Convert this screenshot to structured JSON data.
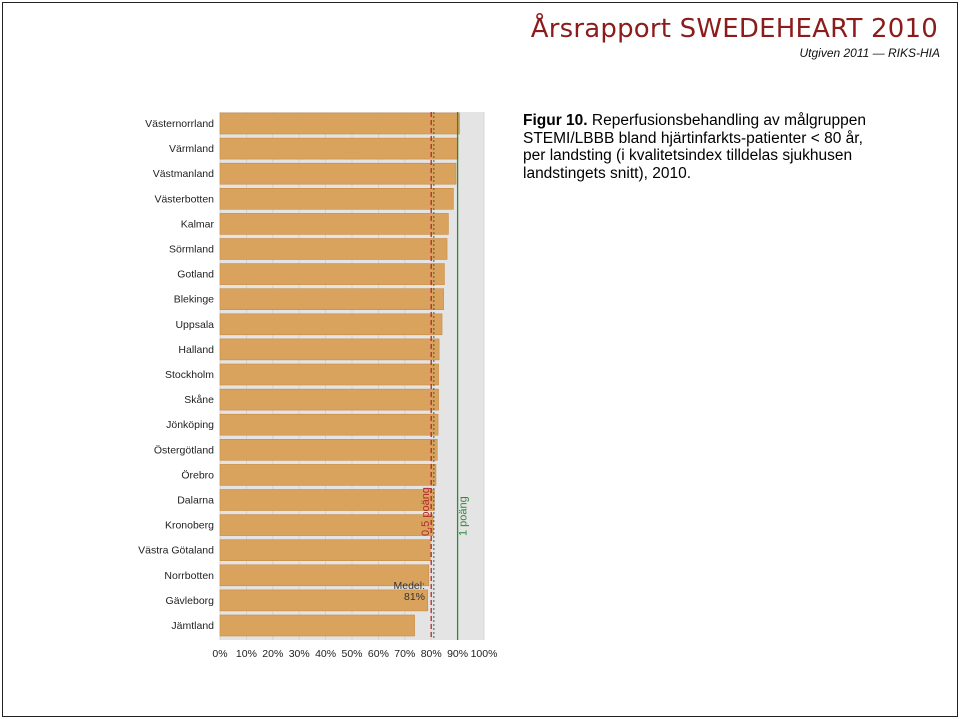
{
  "header": {
    "brand": "Årsrapport SWEDEHEART 2010",
    "subtitle": "Utgiven 2011 — RIKS-HIA"
  },
  "caption": {
    "label": "Figur 10.",
    "text": "Reperfusionsbehandling av målgruppen STEMI/LBBB bland hjärtinfarkts-patienter < 80 år, per landsting (i kvalitetsindex tilldelas sjukhusen landstingets snitt), 2010."
  },
  "colors": {
    "bar": "#d9a35e",
    "bar_stroke": "#c88a40",
    "plot_bg": "#e4e4e4",
    "half_point_line": "#b02a2a",
    "one_point_line": "#2c8a3a",
    "mean_line": "#555555",
    "grid": "#cfcfcf"
  },
  "chart_data": {
    "type": "bar",
    "orientation": "horizontal",
    "categories": [
      "Västernorrland",
      "Värmland",
      "Västmanland",
      "Västerbotten",
      "Kalmar",
      "Sörmland",
      "Gotland",
      "Blekinge",
      "Uppsala",
      "Halland",
      "Stockholm",
      "Skåne",
      "Jönköping",
      "Östergötland",
      "Örebro",
      "Dalarna",
      "Kronoberg",
      "Västra Götaland",
      "Norrbotten",
      "Gävleborg",
      "Jämtland"
    ],
    "values": [
      90.7,
      90.1,
      89.4,
      88.4,
      86.5,
      86.0,
      85.0,
      84.7,
      84.1,
      83.0,
      82.8,
      82.8,
      82.6,
      82.3,
      81.8,
      81.2,
      80.7,
      79.6,
      79.1,
      78.7,
      73.7
    ],
    "xlim": [
      0,
      100
    ],
    "x_ticks": [
      "0%",
      "10%",
      "20%",
      "30%",
      "40%",
      "50%",
      "60%",
      "70%",
      "80%",
      "90%",
      "100%"
    ],
    "reference_lines": [
      {
        "label": "0,5 poäng",
        "value": 80,
        "style": "dashed",
        "color": "#b02a2a"
      },
      {
        "label": "1 poäng",
        "value": 90,
        "style": "solid",
        "color": "#2c8a3a"
      }
    ],
    "mean": {
      "label": "Medel:",
      "value_label": "81%",
      "value": 81
    },
    "grid": true
  }
}
